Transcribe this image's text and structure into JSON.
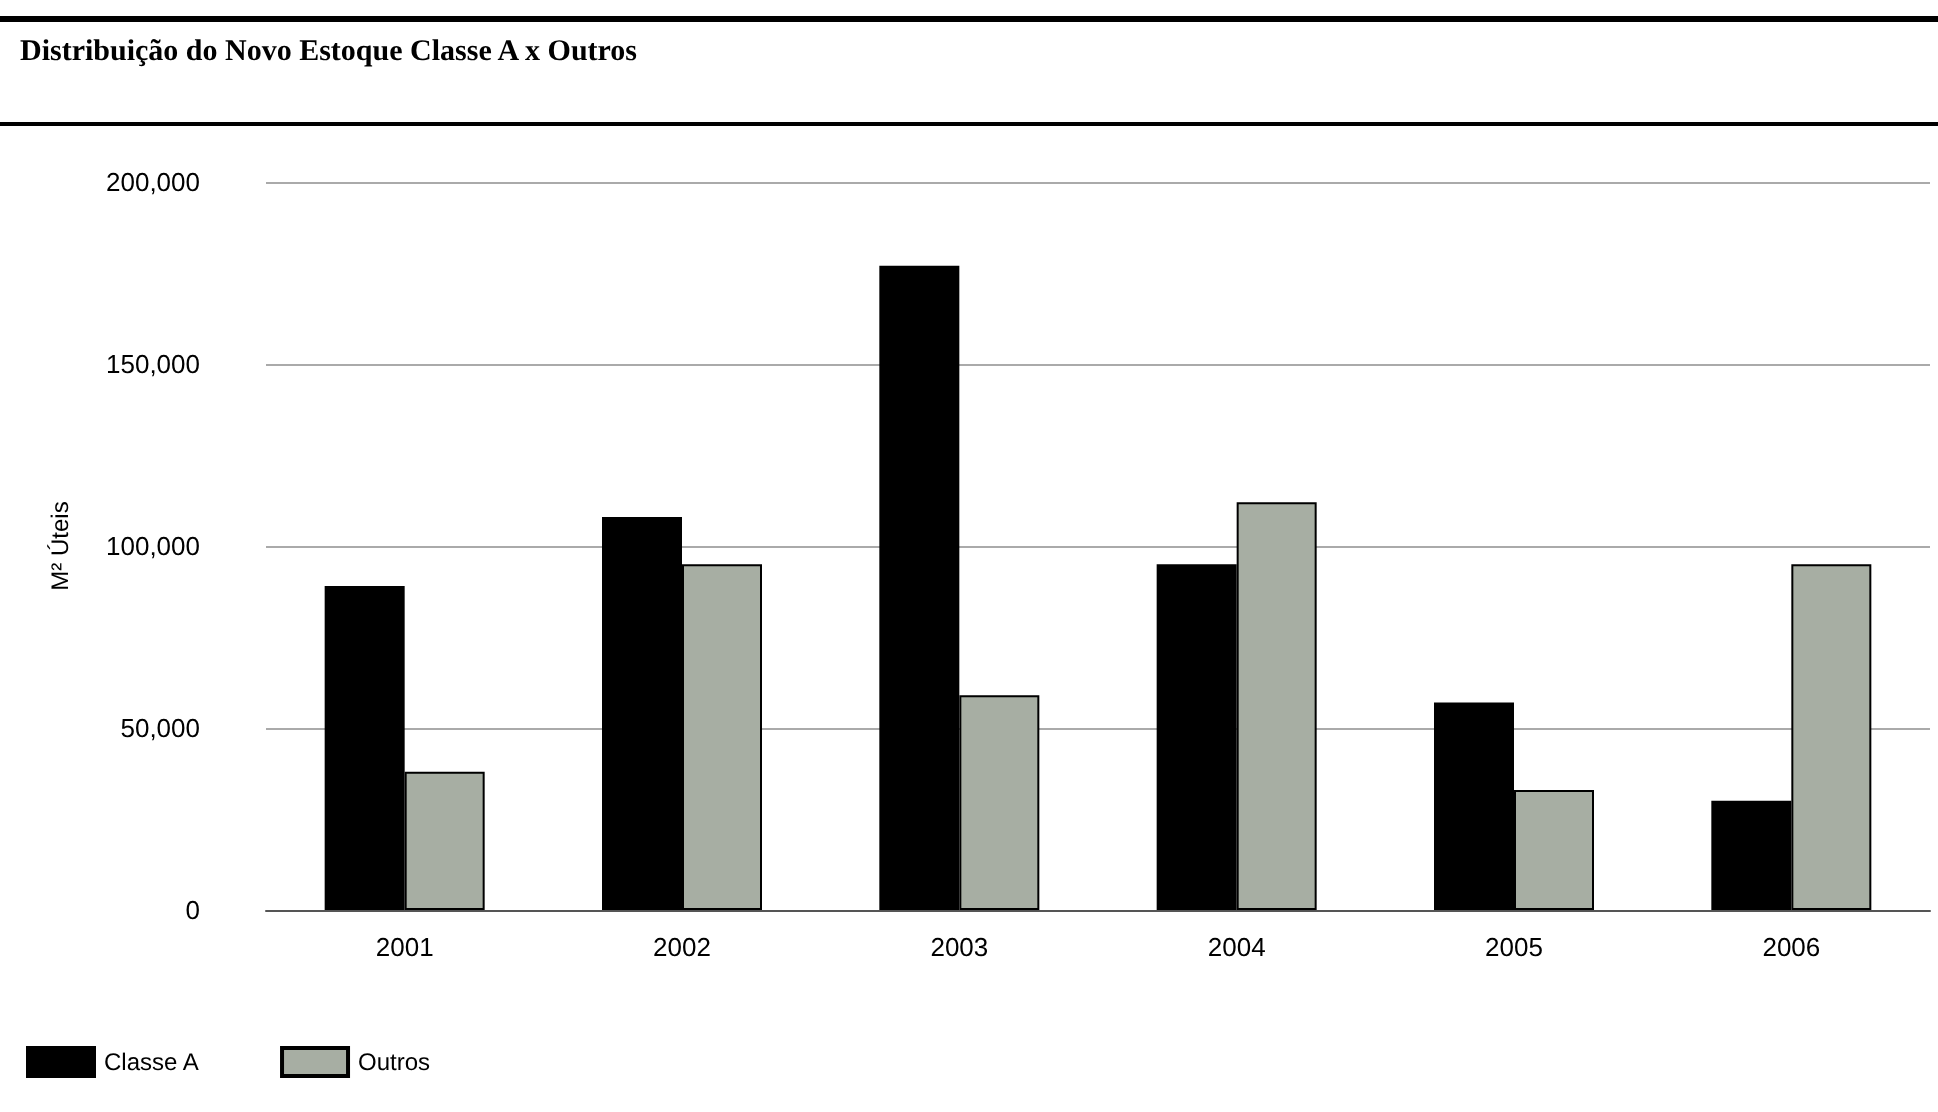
{
  "chart_data": {
    "type": "bar",
    "title": "Distribuição do Novo Estoque Classe A x Outros",
    "ylabel": "M² Úteis",
    "categories": [
      "2001",
      "2002",
      "2003",
      "2004",
      "2005",
      "2006"
    ],
    "series": [
      {
        "name": "Classe A",
        "color": "#000000",
        "values": [
          89000,
          108000,
          177000,
          95000,
          57000,
          30000
        ]
      },
      {
        "name": "Outros",
        "color": "#a7aea3",
        "values": [
          38000,
          95000,
          59000,
          112000,
          33000,
          95000
        ]
      }
    ],
    "ylim": [
      0,
      200000
    ],
    "yticks": [
      0,
      {
        "value": 50000,
        "label": "50,000"
      },
      {
        "value": 100000,
        "label": "100,000"
      },
      {
        "value": 150000,
        "label": "150,000"
      },
      {
        "value": 200000,
        "label": "200,000"
      }
    ],
    "grid": "y",
    "legend": "bottom left"
  }
}
